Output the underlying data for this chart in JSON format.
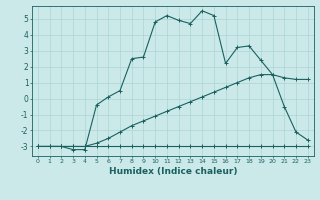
{
  "xlabel": "Humidex (Indice chaleur)",
  "background_color": "#cce9e9",
  "grid_color": "#aad4d4",
  "line_color": "#1a6060",
  "xlim": [
    -0.5,
    23.5
  ],
  "ylim": [
    -3.6,
    5.8
  ],
  "xticks": [
    0,
    1,
    2,
    3,
    4,
    5,
    6,
    7,
    8,
    9,
    10,
    11,
    12,
    13,
    14,
    15,
    16,
    17,
    18,
    19,
    20,
    21,
    22,
    23
  ],
  "yticks": [
    -3,
    -2,
    -1,
    0,
    1,
    2,
    3,
    4,
    5
  ],
  "line1_x": [
    0,
    1,
    2,
    3,
    4,
    5,
    6,
    7,
    8,
    9,
    10,
    11,
    12,
    13,
    14,
    15,
    16,
    17,
    18,
    19,
    20,
    21,
    22,
    23
  ],
  "line1_y": [
    -3,
    -3,
    -3,
    -3,
    -3,
    -3,
    -3,
    -3,
    -3,
    -3,
    -3,
    -3,
    -3,
    -3,
    -3,
    -3,
    -3,
    -3,
    -3,
    -3,
    -3,
    -3,
    -3,
    -3
  ],
  "line2_x": [
    0,
    2,
    3,
    4,
    5,
    6,
    7,
    8,
    9,
    10,
    11,
    12,
    13,
    14,
    15,
    16,
    17,
    18,
    19,
    20,
    21,
    22,
    23
  ],
  "line2_y": [
    -3,
    -3,
    -3,
    -3,
    -2.8,
    -2.5,
    -2.1,
    -1.7,
    -1.4,
    -1.1,
    -0.8,
    -0.5,
    -0.2,
    0.1,
    0.4,
    0.7,
    1.0,
    1.3,
    1.5,
    1.5,
    1.3,
    1.2,
    1.2
  ],
  "line3_x": [
    0,
    1,
    2,
    3,
    4,
    5,
    6,
    7,
    8,
    9,
    10,
    11,
    12,
    13,
    14,
    15,
    16,
    17,
    18,
    19,
    20,
    21,
    22,
    23
  ],
  "line3_y": [
    -3,
    -3,
    -3,
    -3.2,
    -3.2,
    -0.4,
    0.1,
    0.5,
    2.5,
    2.6,
    4.8,
    5.2,
    4.9,
    4.7,
    5.5,
    5.2,
    2.2,
    3.2,
    3.3,
    2.4,
    1.5,
    -0.5,
    -2.1,
    -2.6
  ]
}
